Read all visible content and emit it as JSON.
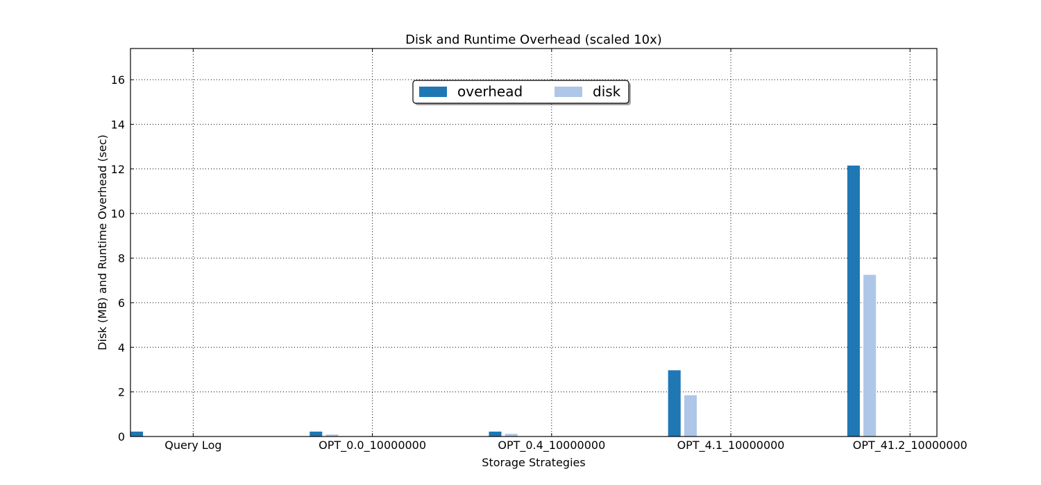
{
  "chart_data": {
    "type": "bar",
    "title": "Disk and Runtime Overhead (scaled 10x)",
    "xlabel": "Storage Strategies",
    "ylabel": "Disk (MB) and Runtime Overhead (sec)",
    "categories": [
      "Query Log",
      "OPT_0.0_10000000",
      "OPT_0.4_10000000",
      "OPT_4.1_10000000",
      "OPT_41.2_10000000"
    ],
    "series": [
      {
        "name": "overhead",
        "values": [
          0.22,
          0.22,
          0.22,
          2.97,
          12.15
        ],
        "color": "#1f77b4"
      },
      {
        "name": "disk",
        "values": [
          0.0,
          0.09,
          0.12,
          1.85,
          7.25
        ],
        "color": "#aec7e8"
      }
    ],
    "ylim": [
      0,
      17.4
    ],
    "yticks": [
      0,
      2,
      4,
      6,
      8,
      10,
      12,
      14,
      16
    ],
    "grid": true,
    "legend_position": "upper-center"
  }
}
